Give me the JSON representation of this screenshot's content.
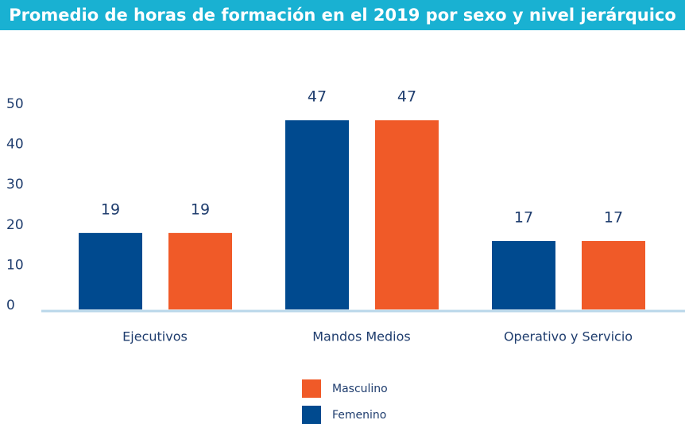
{
  "chart_data": {
    "type": "bar",
    "title": "Promedio de horas de formación en el 2019 por sexo y nivel jerárquico",
    "categories": [
      "Ejecutivos",
      "Mandos Medios",
      "Operativo y Servicio"
    ],
    "series": [
      {
        "name": "Femenino",
        "color": "#004a8f",
        "values": [
          19,
          47,
          17
        ]
      },
      {
        "name": "Masculino",
        "color": "#f05a28",
        "values": [
          19,
          47,
          17
        ]
      }
    ],
    "ylim": [
      0,
      50
    ],
    "yticks": [
      0,
      10,
      20,
      30,
      40,
      50
    ],
    "grid": false
  }
}
